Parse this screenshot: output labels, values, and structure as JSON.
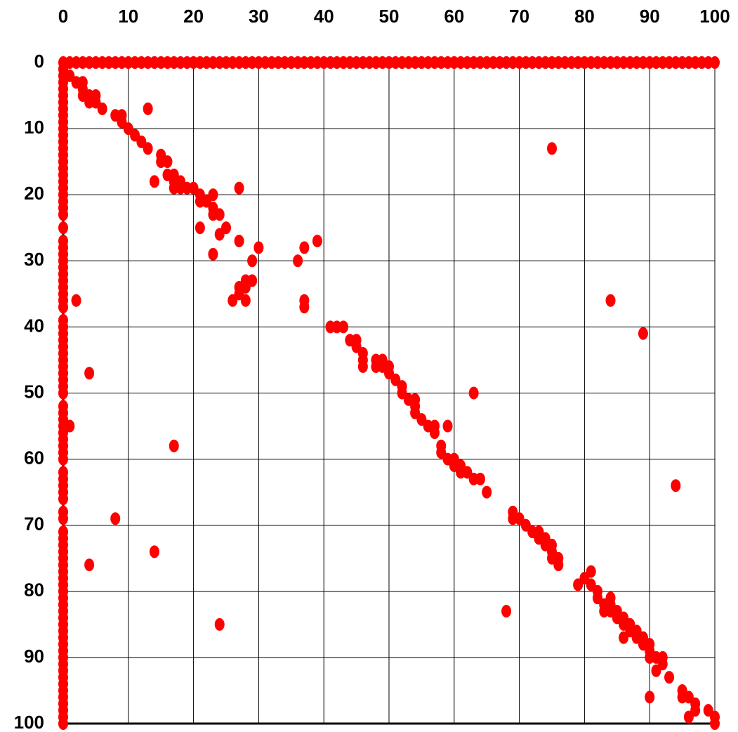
{
  "chart_data": {
    "type": "scatter",
    "xlim": [
      0,
      100
    ],
    "ylim": [
      0,
      100
    ],
    "y_reversed": true,
    "x_axis_position": "top",
    "grid": true,
    "xticks": [
      0,
      10,
      20,
      30,
      40,
      50,
      60,
      70,
      80,
      90,
      100
    ],
    "yticks": [
      0,
      10,
      20,
      30,
      40,
      50,
      60,
      70,
      80,
      90,
      100
    ],
    "series": [
      {
        "color": "#ff0000",
        "x": [
          0,
          1,
          2,
          3,
          4,
          5,
          6,
          7,
          8,
          9,
          10,
          11,
          12,
          13,
          14,
          15,
          16,
          17,
          18,
          19,
          20,
          21,
          22,
          23,
          24,
          25,
          26,
          27,
          28,
          29,
          30,
          31,
          32,
          33,
          34,
          35,
          36,
          37,
          38,
          39,
          40,
          41,
          42,
          43,
          44,
          45,
          46,
          47,
          48,
          49,
          50,
          51,
          52,
          53,
          54,
          55,
          56,
          57,
          58,
          59,
          60,
          61,
          62,
          63,
          64,
          65,
          66,
          67,
          68,
          69,
          70,
          71,
          72,
          73,
          74,
          75,
          76,
          77,
          78,
          79,
          80,
          81,
          82,
          83,
          84,
          85,
          86,
          87,
          88,
          89,
          90,
          91,
          92,
          93,
          94,
          95,
          96,
          97,
          98,
          99,
          100
        ],
        "values": [
          0,
          0,
          0,
          0,
          0,
          0,
          0,
          0,
          0,
          0,
          0,
          0,
          0,
          0,
          0,
          0,
          0,
          0,
          0,
          0,
          0,
          0,
          0,
          0,
          0,
          0,
          0,
          0,
          0,
          0,
          0,
          0,
          0,
          0,
          0,
          0,
          0,
          0,
          0,
          0,
          0,
          0,
          0,
          0,
          0,
          0,
          0,
          0,
          0,
          0,
          0,
          0,
          0,
          0,
          0,
          0,
          0,
          0,
          0,
          0,
          0,
          0,
          0,
          0,
          0,
          0,
          0,
          0,
          0,
          0,
          0,
          0,
          0,
          0,
          0,
          0,
          0,
          0,
          0,
          0,
          0,
          0,
          0,
          0,
          0,
          0,
          0,
          0,
          0,
          0,
          0,
          0,
          0,
          0,
          0,
          0,
          0,
          0,
          0,
          0,
          0
        ]
      },
      {
        "color": "#ff0000",
        "x": [
          0,
          0,
          0,
          0,
          0,
          0,
          0,
          0,
          0,
          0,
          0,
          0,
          0,
          0,
          0,
          0,
          0,
          0,
          0,
          0,
          0,
          0,
          0,
          0,
          0,
          0,
          0,
          0,
          0,
          0,
          0,
          0,
          0,
          0,
          0,
          0,
          0,
          0,
          0,
          0,
          0,
          0,
          0,
          0,
          0,
          0,
          0,
          0,
          0,
          0,
          0,
          0,
          0,
          0,
          0,
          0,
          0,
          0,
          0,
          0,
          0,
          0,
          0,
          0,
          0,
          0,
          0,
          0,
          0,
          0,
          0,
          0,
          0,
          0,
          0,
          0,
          0,
          0,
          0,
          0,
          0,
          0,
          0,
          0,
          0,
          0,
          0,
          0,
          0,
          0,
          0,
          0,
          0
        ],
        "values": [
          1,
          2,
          3,
          4,
          5,
          6,
          7,
          8,
          9,
          10,
          11,
          12,
          13,
          14,
          15,
          16,
          17,
          18,
          19,
          20,
          21,
          22,
          23,
          25,
          27,
          28,
          29,
          30,
          31,
          32,
          33,
          34,
          35,
          36,
          37,
          39,
          40,
          41,
          42,
          43,
          44,
          45,
          46,
          47,
          48,
          49,
          50,
          52,
          53,
          54,
          55,
          56,
          57,
          58,
          59,
          60,
          62,
          63,
          64,
          65,
          66,
          68,
          69,
          71,
          72,
          73,
          74,
          75,
          76,
          77,
          78,
          79,
          80,
          81,
          82,
          83,
          84,
          85,
          86,
          87,
          88,
          89,
          90,
          91,
          92,
          93,
          94,
          95,
          96,
          97,
          98,
          99,
          100
        ]
      },
      {
        "color": "#ff0000",
        "x": [
          1,
          2,
          3,
          3,
          3,
          4,
          4,
          5,
          5,
          6,
          8,
          9,
          9,
          10,
          11,
          12,
          13,
          13,
          14,
          15,
          15,
          16,
          16,
          17,
          17,
          17,
          18,
          18,
          19,
          20,
          21,
          21,
          22,
          23,
          23,
          23,
          24,
          24,
          25,
          21,
          23,
          27,
          27,
          28,
          27,
          27,
          28,
          29,
          26,
          28,
          29,
          30,
          36,
          37,
          39,
          37,
          37,
          2,
          4,
          1,
          17,
          8,
          14,
          4,
          24,
          75,
          84,
          89,
          63,
          94,
          68,
          41,
          42,
          43,
          44,
          45,
          45,
          46,
          46,
          46,
          48,
          48,
          49,
          49,
          50,
          50,
          51,
          52,
          52,
          53,
          54,
          54,
          54,
          55,
          56,
          57,
          57,
          58,
          58,
          59,
          59,
          60,
          60,
          61,
          61,
          62,
          63,
          64,
          65,
          69,
          69,
          70,
          71,
          72,
          73,
          73,
          74,
          74,
          75,
          75,
          75,
          76,
          76,
          79,
          80,
          81,
          81,
          82,
          82,
          83,
          83,
          84,
          84,
          84,
          85,
          85,
          86,
          86,
          86,
          87,
          87,
          88,
          88,
          89,
          89,
          90,
          90,
          90,
          91,
          91,
          92,
          92,
          93,
          90,
          95,
          95,
          96,
          96,
          97,
          97,
          99,
          100,
          100
        ],
        "values": [
          2,
          3,
          3,
          4,
          5,
          5,
          6,
          5,
          6,
          7,
          8,
          8,
          9,
          10,
          11,
          12,
          13,
          7,
          18,
          14,
          15,
          15,
          17,
          17,
          18,
          19,
          18,
          19,
          19,
          19,
          20,
          21,
          21,
          20,
          22,
          23,
          23,
          26,
          25,
          25,
          29,
          19,
          27,
          34,
          35,
          34,
          33,
          33,
          36,
          36,
          30,
          28,
          30,
          28,
          27,
          36,
          37,
          36,
          47,
          55,
          58,
          69,
          74,
          76,
          85,
          13,
          36,
          41,
          50,
          64,
          83,
          40,
          40,
          40,
          42,
          42,
          43,
          44,
          45,
          46,
          45,
          46,
          45,
          46,
          46,
          47,
          48,
          49,
          50,
          51,
          51,
          52,
          53,
          54,
          55,
          55,
          56,
          58,
          59,
          55,
          60,
          60,
          61,
          61,
          62,
          62,
          63,
          63,
          65,
          68,
          69,
          69,
          70,
          71,
          71,
          72,
          72,
          73,
          73,
          74,
          75,
          75,
          76,
          79,
          78,
          77,
          79,
          80,
          81,
          82,
          83,
          81,
          82,
          83,
          83,
          84,
          84,
          85,
          87,
          85,
          86,
          86,
          87,
          87,
          88,
          88,
          89,
          90,
          90,
          92,
          90,
          91,
          93,
          96,
          95,
          96,
          96,
          99,
          98,
          97,
          98,
          99,
          100
        ]
      }
    ]
  }
}
